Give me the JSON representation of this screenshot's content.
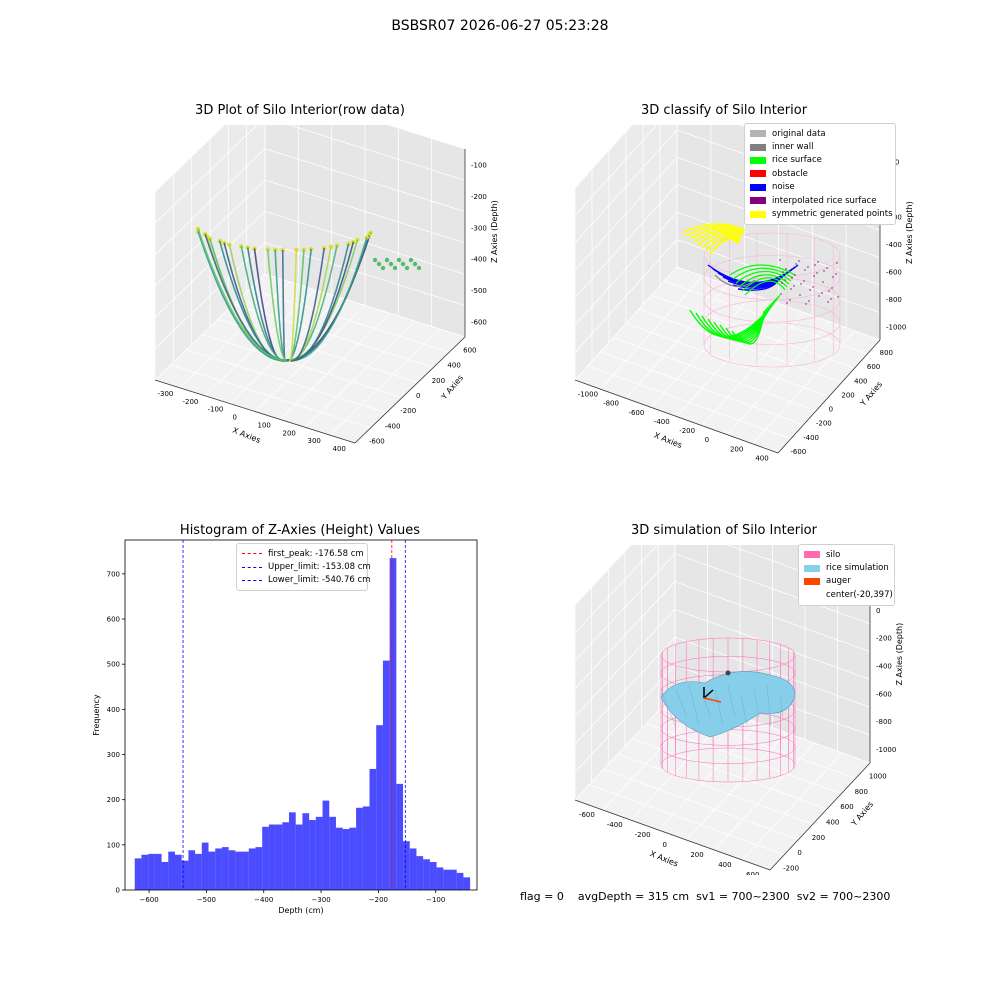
{
  "page": {
    "suptitle": "BSBSR07 2026-06-27 05:23:28",
    "status": {
      "flag": "flag = 0",
      "avg_depth": "avgDepth = 315 cm",
      "sv1": "sv1 = 700~2300",
      "sv2": "sv2 = 700~2300"
    }
  },
  "chart_data": [
    {
      "type": "scatter",
      "title": "3D Plot of Silo Interior(row data)",
      "xlabel": "X Axies",
      "ylabel": "Y Axies",
      "zlabel": "Z Axies (Depth)",
      "x_ticks": [
        "-300",
        "-200",
        "-100",
        "0",
        "100",
        "200",
        "300",
        "400"
      ],
      "y_ticks": [
        "-600",
        "-400",
        "-200",
        "0",
        "200",
        "400",
        "600"
      ],
      "z_ticks": [
        "-100",
        "-200",
        "-300",
        "-400",
        "-500",
        "-600"
      ],
      "colormap": "viridis"
    },
    {
      "type": "scatter",
      "title": "3D classify of Silo Interior",
      "xlabel": "X Axies",
      "ylabel": "Y Axies",
      "zlabel": "Z Axies (Depth)",
      "x_ticks": [
        "-1000",
        "-800",
        "-600",
        "-400",
        "-200",
        "0",
        "200",
        "400"
      ],
      "y_ticks": [
        "-600",
        "-400",
        "-200",
        "0",
        "200",
        "400",
        "600",
        "800"
      ],
      "z_ticks": [
        "200",
        "0",
        "-200",
        "-400",
        "-600",
        "-800",
        "-1000"
      ],
      "legend": [
        {
          "label": "original data",
          "color": "#b3b3b3"
        },
        {
          "label": "inner wall",
          "color": "#808080"
        },
        {
          "label": "rice surface",
          "color": "#00ff00"
        },
        {
          "label": "obstacle",
          "color": "#ff0000"
        },
        {
          "label": "noise",
          "color": "#0000ff"
        },
        {
          "label": "interpolated rice surface",
          "color": "#800080"
        },
        {
          "label": "symmetric generated points",
          "color": "#ffff00"
        }
      ]
    },
    {
      "type": "bar",
      "title": "Histogram of Z-Axies (Height) Values",
      "xlabel": "Depth (cm)",
      "ylabel": "Frequency",
      "xlim": [
        -642,
        -28
      ],
      "ylim": [
        0,
        775
      ],
      "x_ticks": [
        -600,
        -500,
        -400,
        -300,
        -200,
        -100
      ],
      "y_ticks": [
        0,
        100,
        200,
        300,
        400,
        500,
        600,
        700
      ],
      "bin_start": -625,
      "bin_width": 11.7,
      "values": [
        70,
        78,
        80,
        80,
        62,
        85,
        78,
        65,
        88,
        80,
        105,
        85,
        92,
        95,
        88,
        85,
        85,
        92,
        95,
        140,
        145,
        145,
        150,
        172,
        145,
        170,
        155,
        162,
        198,
        162,
        138,
        135,
        138,
        182,
        185,
        268,
        365,
        508,
        735,
        235,
        108,
        92,
        75,
        68,
        62,
        50,
        45,
        45,
        38,
        28
      ],
      "bar_color": "#0000ff",
      "vlines": [
        {
          "label": "first_peak: -176.58 cm",
          "x": -176.58,
          "color": "#ff0000"
        },
        {
          "label": "Upper_limit: -153.08 cm",
          "x": -153.08,
          "color": "#0000ff"
        },
        {
          "label": "Lower_limit: -540.76 cm",
          "x": -540.76,
          "color": "#0000ff"
        }
      ],
      "legend_position": "upper center"
    },
    {
      "type": "scatter",
      "title": "3D simulation of Silo Interior",
      "xlabel": "X Axies",
      "ylabel": "Y Axies",
      "zlabel": "Z Axies (Depth)",
      "x_ticks": [
        "-600",
        "-400",
        "-200",
        "0",
        "200",
        "400",
        "600"
      ],
      "y_ticks": [
        "-200",
        "0",
        "200",
        "400",
        "600",
        "800",
        "1000"
      ],
      "z_ticks": [
        "200",
        "0",
        "-200",
        "-400",
        "-600",
        "-800",
        "-1000"
      ],
      "legend": [
        {
          "label": "silo",
          "color": "#ff69b4"
        },
        {
          "label": "rice simulation",
          "color": "#87ceeb"
        },
        {
          "label": "auger",
          "color": "#ff4500"
        },
        {
          "label": "center(-20,397)",
          "color": ""
        }
      ]
    }
  ]
}
